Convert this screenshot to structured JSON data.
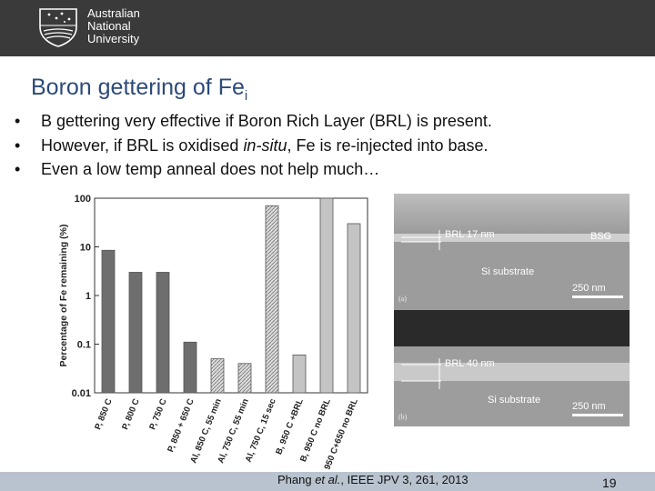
{
  "header": {
    "logo_icon": "anu-crest-icon",
    "university_name": [
      "Australian",
      "National",
      "University"
    ],
    "background": "#3a3a3a"
  },
  "slide": {
    "title_main": "Boron gettering of Fe",
    "title_sub": "i",
    "title_color": "#2d4a7a",
    "bullets": [
      {
        "before": "B gettering very effective if Boron Rich Layer (BRL) is present.",
        "em": "",
        "after": ""
      },
      {
        "before": "However, if BRL is oxidised ",
        "em": "in-situ",
        "after": ", Fe is re-injected into base."
      },
      {
        "before": "Even a low temp anneal does not help much…",
        "em": "",
        "after": ""
      }
    ]
  },
  "chart_data": {
    "type": "bar",
    "ylabel": "Percentage of Fe remaining (%)",
    "yscale": "log",
    "ylim": [
      0.01,
      100
    ],
    "yticks": [
      "100",
      "10",
      "1",
      "0.1",
      "0.01"
    ],
    "categories": [
      "P, 850 C",
      "P, 800 C",
      "P, 750 C",
      "P, 850 + 650 C",
      "Al, 850 C, 55 min",
      "Al, 750 C, 55 min",
      "Al, 750 C, 15 sec",
      "B, 950 C +BRL",
      "B, 950 C no BRL",
      "B, 950 C+650 no BRL"
    ],
    "values": [
      8.5,
      3.0,
      3.0,
      0.11,
      0.05,
      0.04,
      70,
      0.06,
      100,
      30
    ],
    "styles": [
      "solid",
      "solid",
      "solid",
      "solid",
      "hatched",
      "hatched",
      "hatched",
      "light",
      "light",
      "light"
    ],
    "grid": false
  },
  "figure": {
    "panel_a": {
      "label": "(a)",
      "layer_label": "BRL 17 nm",
      "top_label": "BSG",
      "substrate_label": "Si substrate",
      "scale_label": "250 nm"
    },
    "panel_b": {
      "label": "(b)",
      "layer_label": "BRL 40 nm",
      "substrate_label": "Si substrate",
      "scale_label": "250 nm"
    }
  },
  "footer": {
    "cite_before": "Phang ",
    "cite_em": "et al.",
    "cite_after": ", IEEE JPV 3, 261, 2013",
    "page_number": "19",
    "background": "#b8c3cf"
  }
}
